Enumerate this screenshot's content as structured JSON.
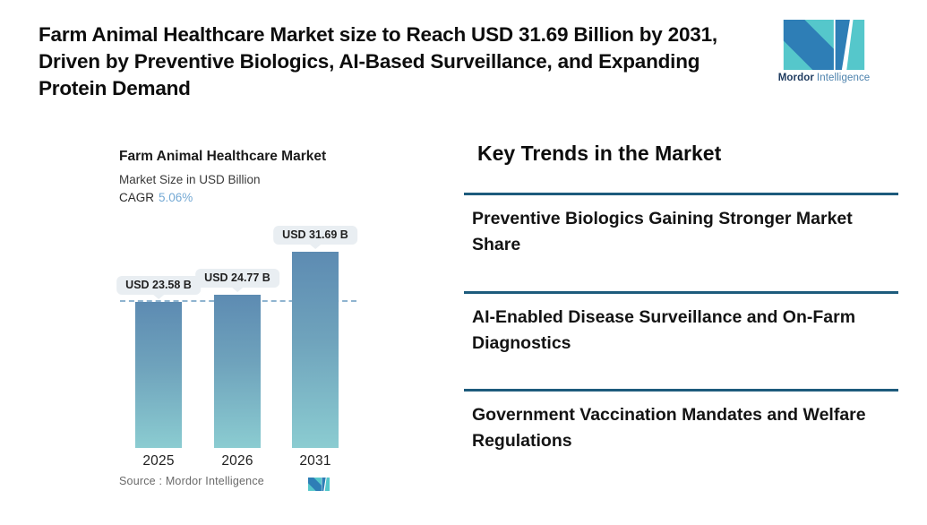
{
  "header": {
    "title": "Farm Animal Healthcare Market size to Reach USD 31.69 Billion by 2031, Driven by Preventive Biologics, AI-Based Surveillance, and Expanding Protein Demand",
    "logo": {
      "brand_bold": "Mordor",
      "brand_light": "Intelligence"
    }
  },
  "chart_data": {
    "type": "bar",
    "title": "Farm Animal Healthcare Market",
    "subtitle": "Market Size in USD Billion",
    "cagr_label": "CAGR",
    "cagr_value": "5.06%",
    "categories": [
      "2025",
      "2026",
      "2031"
    ],
    "values": [
      23.58,
      24.77,
      31.69
    ],
    "value_labels": [
      "USD 23.58 B",
      "USD 24.77 B",
      "USD 31.69 B"
    ],
    "ylim": [
      0,
      31.69
    ],
    "reference_line": {
      "at_value": 23.58,
      "style": "dashed"
    },
    "source": "Source :  Mordor Intelligence",
    "grid": false,
    "legend": false
  },
  "trends": {
    "heading": "Key Trends in the Market",
    "items": [
      {
        "text": "Preventive Biologics Gaining Stronger Market Share"
      },
      {
        "text": "AI-Enabled Disease Surveillance and On-Farm Diagnostics"
      },
      {
        "text": "Government Vaccination Mandates and Welfare Regulations"
      }
    ]
  },
  "colors": {
    "divider": "#1d5b7c",
    "dashed_line": "#8fb4d0",
    "tooltip_bg": "#e9eef2",
    "cagr_value": "#74a9d4",
    "bar_gradient_top": "#5d8bb2",
    "bar_gradient_bottom": "#8bccd1",
    "logo_teal": "#55c7cb",
    "logo_blue": "#2e7eb6",
    "brand_bold_text": "#1e3a5f",
    "brand_light_text": "#4d82ad"
  }
}
